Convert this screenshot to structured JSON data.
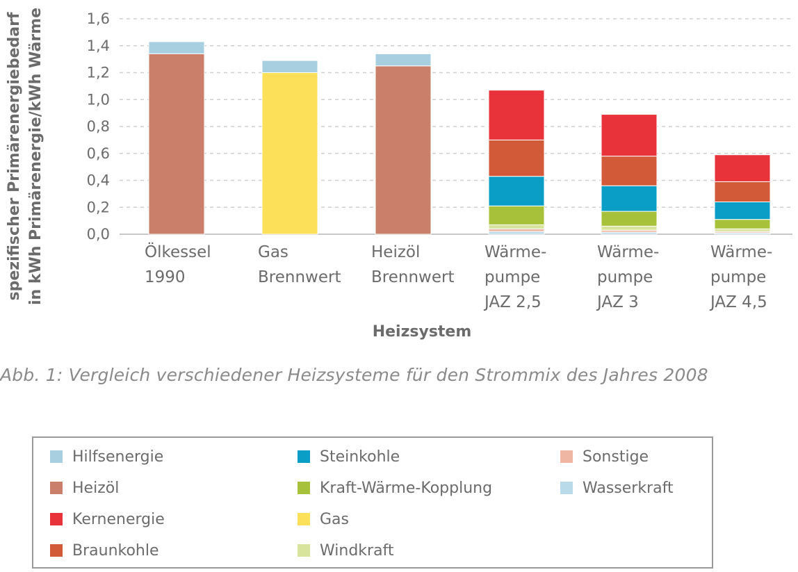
{
  "chart_data": {
    "type": "bar",
    "stacked": true,
    "ylabel_lines": [
      "spezifischer Primärenergiebedarf",
      "in kWh Primärenergie/kWh Wärme"
    ],
    "xlabel": "Heizsystem",
    "ylim": [
      0,
      1.6
    ],
    "yticks": [
      "0,0",
      "0,2",
      "0,4",
      "0,6",
      "0,8",
      "1,0",
      "1,2",
      "1,4",
      "1,6"
    ],
    "categories": [
      [
        "Ölkessel",
        "1990"
      ],
      [
        "Gas",
        "Brennwert"
      ],
      [
        "Heizöl",
        "Brennwert"
      ],
      [
        "Wärme-",
        "pumpe",
        "JAZ 2,5"
      ],
      [
        "Wärme-",
        "pumpe",
        "JAZ 3"
      ],
      [
        "Wärme-",
        "pumpe",
        "JAZ 4,5"
      ]
    ],
    "series": [
      {
        "name": "Wasserkraft",
        "color": "#b9dbe9",
        "values": [
          0,
          0,
          0,
          0.02,
          0.015,
          0.01
        ]
      },
      {
        "name": "Sonstige",
        "color": "#efb7a3",
        "values": [
          0,
          0,
          0,
          0.02,
          0.015,
          0.01
        ]
      },
      {
        "name": "Windkraft",
        "color": "#d8e39b",
        "values": [
          0,
          0,
          0,
          0.03,
          0.03,
          0.02
        ]
      },
      {
        "name": "Kraft-Wärme-Kopplung",
        "color": "#a7c23a",
        "values": [
          0,
          0,
          0,
          0.14,
          0.11,
          0.07
        ]
      },
      {
        "name": "Steinkohle",
        "color": "#0a9ec7",
        "values": [
          0,
          0,
          0,
          0.22,
          0.19,
          0.13
        ]
      },
      {
        "name": "Braunkohle",
        "color": "#d35a38",
        "values": [
          0,
          0,
          0,
          0.27,
          0.22,
          0.15
        ]
      },
      {
        "name": "Kernenergie",
        "color": "#e8333b",
        "values": [
          0,
          0,
          0,
          0.37,
          0.31,
          0.2
        ]
      },
      {
        "name": "Heizöl",
        "color": "#c97f6a",
        "values": [
          1.34,
          0,
          1.25,
          0,
          0,
          0
        ]
      },
      {
        "name": "Gas",
        "color": "#fde05a",
        "values": [
          0,
          1.2,
          0,
          0,
          0,
          0
        ]
      },
      {
        "name": "Hilfsenergie",
        "color": "#a7cfe0",
        "values": [
          0.09,
          0.09,
          0.09,
          0,
          0,
          0
        ]
      }
    ]
  },
  "caption": "Abb. 1: Vergleich verschiedener Heizsysteme für den Strommix des Jahres 2008",
  "legend": {
    "placement": "bottom",
    "columns": [
      [
        {
          "label": "Hilfsenergie",
          "color": "#a7cfe0"
        },
        {
          "label": "Heizöl",
          "color": "#c97f6a"
        },
        {
          "label": "Kernenergie",
          "color": "#e8333b"
        },
        {
          "label": "Braunkohle",
          "color": "#d35a38"
        }
      ],
      [
        {
          "label": "Steinkohle",
          "color": "#0a9ec7"
        },
        {
          "label": "Kraft-Wärme-Kopplung",
          "color": "#a7c23a"
        },
        {
          "label": "Gas",
          "color": "#fde05a"
        },
        {
          "label": "Windkraft",
          "color": "#d8e39b"
        }
      ],
      [
        {
          "label": "Sonstige",
          "color": "#efb7a3"
        },
        {
          "label": "Wasserkraft",
          "color": "#b9dbe9"
        }
      ]
    ]
  }
}
